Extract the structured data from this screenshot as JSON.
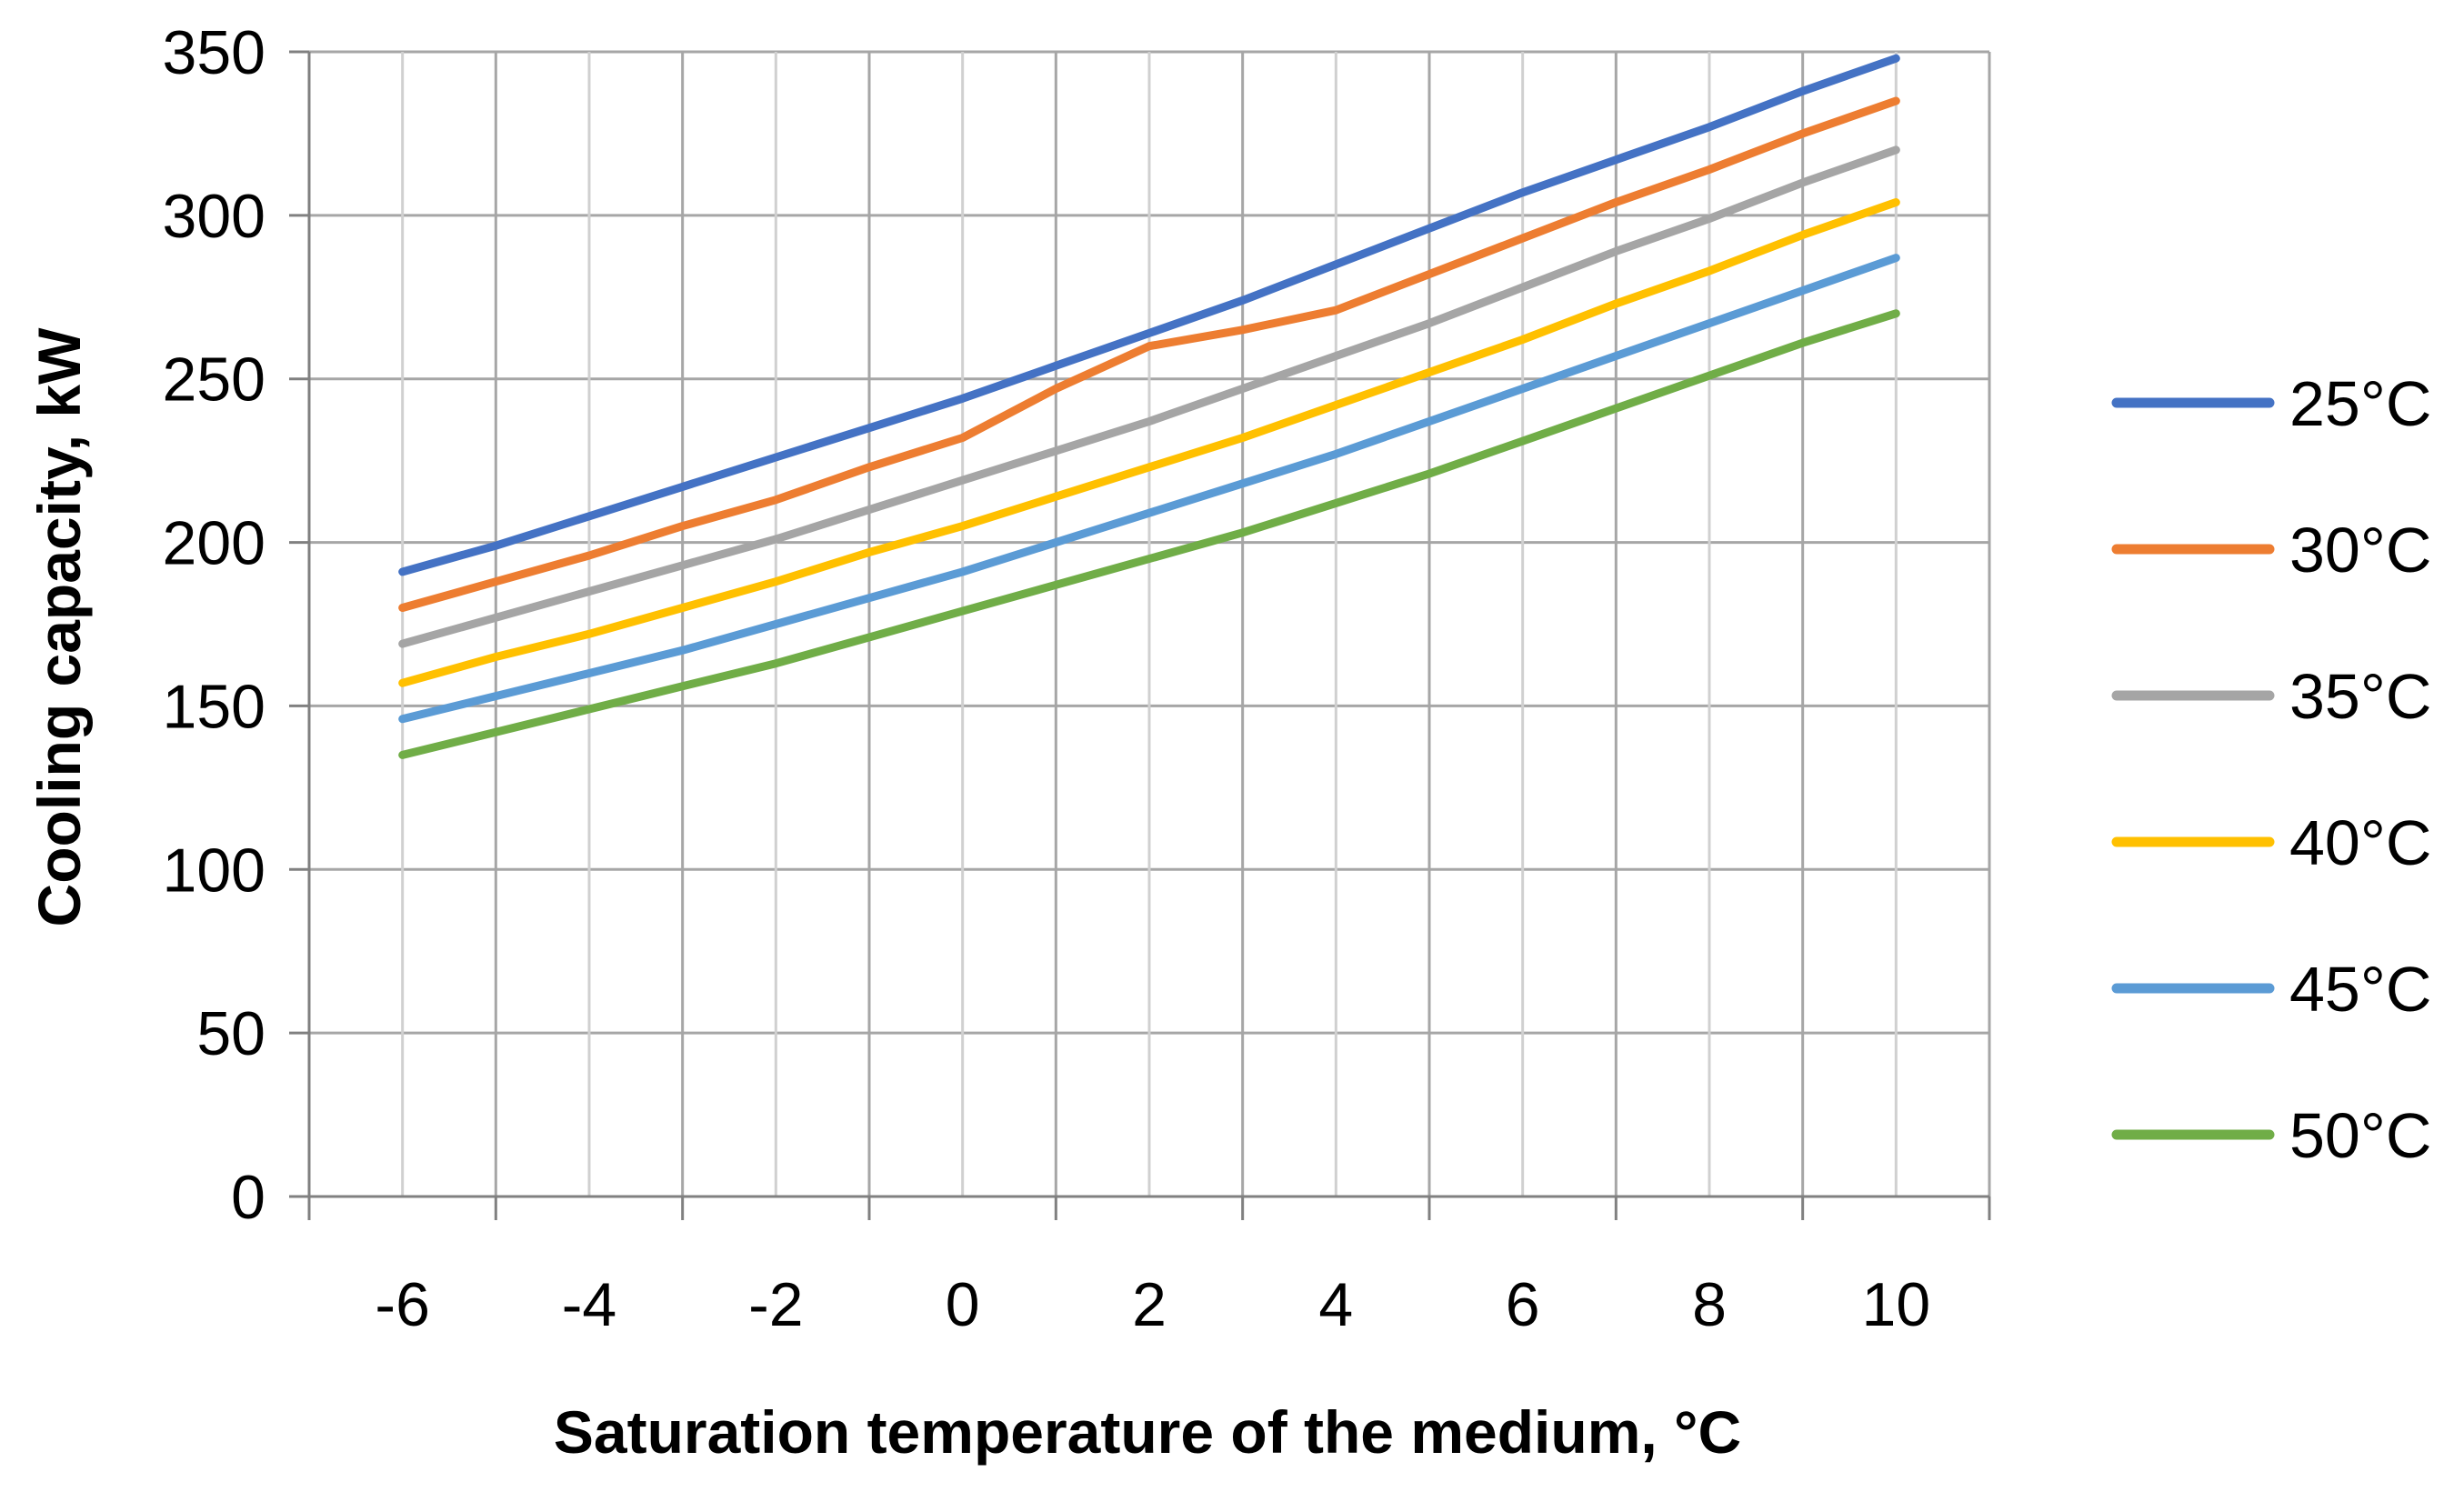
{
  "chart_data": {
    "type": "line",
    "title": "",
    "xlabel": "Saturation temperature of the medium, °C",
    "ylabel": "Cooling capacity, kW",
    "xlim": [
      -7,
      11
    ],
    "ylim": [
      0,
      350
    ],
    "x_ticks": [
      -6,
      -4,
      -2,
      0,
      2,
      4,
      6,
      8,
      10
    ],
    "y_ticks": [
      0,
      50,
      100,
      150,
      200,
      250,
      300,
      350
    ],
    "grid": true,
    "legend_position": "right",
    "x": [
      -6,
      -5,
      -4,
      -3,
      -2,
      -1,
      0,
      1,
      2,
      3,
      4,
      5,
      6,
      7,
      8,
      9,
      10
    ],
    "series": [
      {
        "name": "25°C",
        "color": "#4472C4",
        "values": [
          191,
          199,
          208,
          217,
          226,
          235,
          244,
          254,
          264,
          274,
          285,
          296,
          307,
          317,
          327,
          338,
          348
        ]
      },
      {
        "name": "30°C",
        "color": "#ED7D31",
        "values": [
          180,
          188,
          196,
          205,
          213,
          223,
          232,
          247,
          260,
          265,
          271,
          282,
          293,
          304,
          314,
          325,
          335
        ]
      },
      {
        "name": "35°C",
        "color": "#A5A5A5",
        "values": [
          169,
          177,
          185,
          193,
          201,
          210,
          219,
          228,
          237,
          247,
          257,
          267,
          278,
          289,
          299,
          310,
          320
        ]
      },
      {
        "name": "40°C",
        "color": "#FFC000",
        "values": [
          157,
          165,
          172,
          180,
          188,
          197,
          205,
          214,
          223,
          232,
          242,
          252,
          262,
          273,
          283,
          294,
          304
        ]
      },
      {
        "name": "45°C",
        "color": "#5B9BD5",
        "values": [
          146,
          153,
          160,
          167,
          175,
          183,
          191,
          200,
          209,
          218,
          227,
          237,
          247,
          257,
          267,
          277,
          287
        ]
      },
      {
        "name": "50°C",
        "color": "#70AD47",
        "values": [
          135,
          142,
          149,
          156,
          163,
          171,
          179,
          187,
          195,
          203,
          212,
          221,
          231,
          241,
          251,
          261,
          270
        ]
      }
    ]
  }
}
